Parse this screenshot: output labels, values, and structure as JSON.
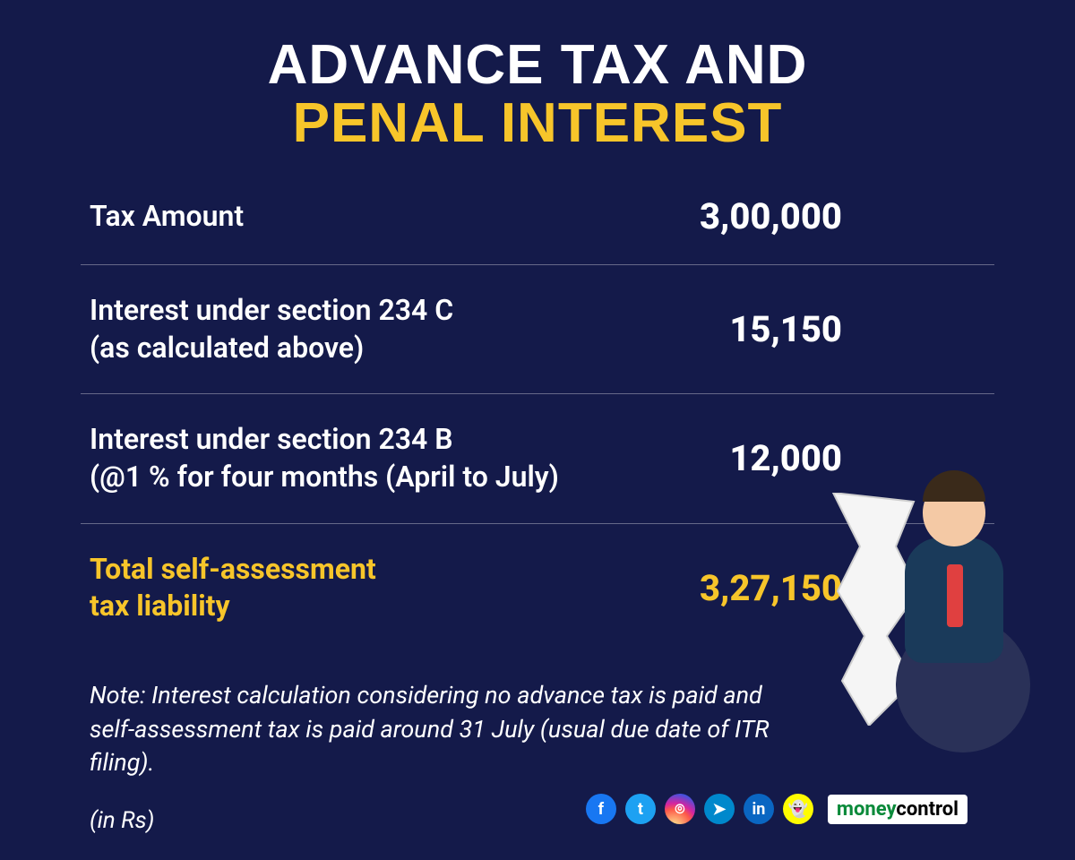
{
  "title": {
    "line1": "ADVANCE TAX AND",
    "line2": "PENAL INTEREST"
  },
  "colors": {
    "background": "#141a4a",
    "text": "#ffffff",
    "accent": "#f7c52a",
    "divider": "rgba(255,255,255,0.35)"
  },
  "typography": {
    "title_fontsize": 62,
    "label_fontsize": 32,
    "value_fontsize": 40,
    "note_fontsize": 27
  },
  "table": {
    "type": "table",
    "rows": [
      {
        "label": "Tax Amount",
        "value": "3,00,000",
        "highlight": false
      },
      {
        "label": "Interest under section 234 C\n(as calculated above)",
        "value": "15,150",
        "highlight": false
      },
      {
        "label": "Interest under section 234 B\n(@1 % for four months (April to July)",
        "value": "12,000",
        "highlight": false
      },
      {
        "label": "Total self-assessment\ntax liability",
        "value": "3,27,150",
        "highlight": true
      }
    ]
  },
  "note": "Note: Interest calculation considering no advance tax is paid and self-assessment tax is paid around 31 July (usual due date of ITR filing).",
  "unit": "(in Rs)",
  "social": {
    "icons": [
      {
        "name": "facebook-icon",
        "glyph": "f",
        "class": "fb"
      },
      {
        "name": "twitter-icon",
        "glyph": "t",
        "class": "tw"
      },
      {
        "name": "instagram-icon",
        "glyph": "⌾",
        "class": "ig"
      },
      {
        "name": "telegram-icon",
        "glyph": "➤",
        "class": "tg"
      },
      {
        "name": "linkedin-icon",
        "glyph": "in",
        "class": "li"
      },
      {
        "name": "snapchat-icon",
        "glyph": "👻",
        "class": "sc"
      }
    ],
    "brand_prefix": "money",
    "brand_suffix": "control"
  },
  "illustration": {
    "description": "stressed-businessman-with-long-paper"
  }
}
